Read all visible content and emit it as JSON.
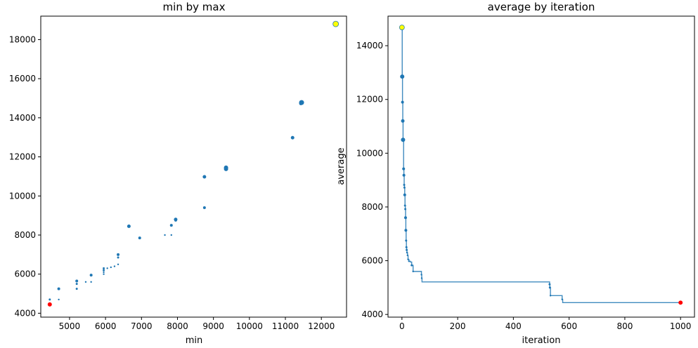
{
  "colors": {
    "series": "#1f77b4",
    "highlight_start": "#ffff00",
    "highlight_end": "#ff0000",
    "axis": "#000000",
    "background": "#ffffff"
  },
  "chart_data": [
    {
      "type": "scatter",
      "title": "min by max",
      "xlabel": "min",
      "ylabel": "",
      "xlim": [
        4200,
        12700
      ],
      "ylim": [
        3800,
        19200
      ],
      "xticks": [
        5000,
        6000,
        7000,
        8000,
        9000,
        10000,
        11000,
        12000
      ],
      "yticks": [
        4000,
        6000,
        8000,
        10000,
        12000,
        14000,
        16000,
        18000
      ],
      "grid": false,
      "points": [
        {
          "x": 12400,
          "y": 18800,
          "size": 4,
          "highlight": "start"
        },
        {
          "x": 11450,
          "y": 14780,
          "size": 3.5
        },
        {
          "x": 11430,
          "y": 14730,
          "size": 2.5
        },
        {
          "x": 11200,
          "y": 12980,
          "size": 2.5
        },
        {
          "x": 9350,
          "y": 11450,
          "size": 3
        },
        {
          "x": 9350,
          "y": 11380,
          "size": 3
        },
        {
          "x": 8750,
          "y": 10980,
          "size": 2.5
        },
        {
          "x": 8750,
          "y": 9400,
          "size": 2
        },
        {
          "x": 7950,
          "y": 8800,
          "size": 2.5
        },
        {
          "x": 7950,
          "y": 8760,
          "size": 2
        },
        {
          "x": 7830,
          "y": 8500,
          "size": 2
        },
        {
          "x": 7830,
          "y": 8000,
          "size": 1.2
        },
        {
          "x": 7650,
          "y": 8000,
          "size": 1.2
        },
        {
          "x": 6650,
          "y": 8450,
          "size": 2.5
        },
        {
          "x": 6950,
          "y": 7850,
          "size": 2
        },
        {
          "x": 6350,
          "y": 7000,
          "size": 2
        },
        {
          "x": 6350,
          "y": 6850,
          "size": 1.5
        },
        {
          "x": 6350,
          "y": 6500,
          "size": 1.2
        },
        {
          "x": 6250,
          "y": 6400,
          "size": 1.2
        },
        {
          "x": 6150,
          "y": 6350,
          "size": 1.2
        },
        {
          "x": 6050,
          "y": 6300,
          "size": 1.2
        },
        {
          "x": 5950,
          "y": 6300,
          "size": 1.5
        },
        {
          "x": 5950,
          "y": 6200,
          "size": 1.5
        },
        {
          "x": 5950,
          "y": 6100,
          "size": 1.2
        },
        {
          "x": 5950,
          "y": 6000,
          "size": 1.2
        },
        {
          "x": 5600,
          "y": 5950,
          "size": 2
        },
        {
          "x": 5600,
          "y": 5600,
          "size": 1.2
        },
        {
          "x": 5450,
          "y": 5600,
          "size": 1.2
        },
        {
          "x": 5200,
          "y": 5650,
          "size": 2
        },
        {
          "x": 5200,
          "y": 5500,
          "size": 1.5
        },
        {
          "x": 5200,
          "y": 5250,
          "size": 1.5
        },
        {
          "x": 4700,
          "y": 5250,
          "size": 2
        },
        {
          "x": 4700,
          "y": 4700,
          "size": 1.2
        },
        {
          "x": 4450,
          "y": 4700,
          "size": 1.5
        },
        {
          "x": 4450,
          "y": 4450,
          "size": 3,
          "highlight": "end"
        }
      ]
    },
    {
      "type": "line",
      "title": "average by iteration",
      "xlabel": "iteration",
      "ylabel": "average",
      "xlim": [
        -50,
        1050
      ],
      "ylim": [
        3900,
        15100
      ],
      "xticks": [
        0,
        200,
        400,
        600,
        800,
        1000
      ],
      "yticks": [
        4000,
        6000,
        8000,
        10000,
        12000,
        14000
      ],
      "grid": false,
      "steps": [
        {
          "x": 0,
          "y": 14680
        },
        {
          "x": 1,
          "y": 12850
        },
        {
          "x": 2,
          "y": 11900
        },
        {
          "x": 3,
          "y": 11200
        },
        {
          "x": 4,
          "y": 10500
        },
        {
          "x": 5,
          "y": 10480
        },
        {
          "x": 6,
          "y": 9420
        },
        {
          "x": 7,
          "y": 9180
        },
        {
          "x": 8,
          "y": 8820
        },
        {
          "x": 9,
          "y": 8720
        },
        {
          "x": 10,
          "y": 8450
        },
        {
          "x": 11,
          "y": 8050
        },
        {
          "x": 12,
          "y": 7920
        },
        {
          "x": 13,
          "y": 7600
        },
        {
          "x": 14,
          "y": 7130
        },
        {
          "x": 15,
          "y": 6750
        },
        {
          "x": 16,
          "y": 6500
        },
        {
          "x": 17,
          "y": 6400
        },
        {
          "x": 18,
          "y": 6300
        },
        {
          "x": 20,
          "y": 6200
        },
        {
          "x": 22,
          "y": 6050
        },
        {
          "x": 25,
          "y": 5980
        },
        {
          "x": 30,
          "y": 5950
        },
        {
          "x": 35,
          "y": 5830
        },
        {
          "x": 40,
          "y": 5600
        },
        {
          "x": 70,
          "y": 5480
        },
        {
          "x": 71,
          "y": 5350
        },
        {
          "x": 72,
          "y": 5210
        },
        {
          "x": 530,
          "y": 5120
        },
        {
          "x": 531,
          "y": 5000
        },
        {
          "x": 533,
          "y": 4700
        },
        {
          "x": 575,
          "y": 4560
        },
        {
          "x": 577,
          "y": 4440
        },
        {
          "x": 1000,
          "y": 4440
        }
      ],
      "marked_points": [
        {
          "x": 0,
          "y": 14680,
          "size": 3.5,
          "highlight": "start"
        },
        {
          "x": 1,
          "y": 12850,
          "size": 3
        },
        {
          "x": 2,
          "y": 11900,
          "size": 2
        },
        {
          "x": 3,
          "y": 11200,
          "size": 2.5
        },
        {
          "x": 4,
          "y": 10500,
          "size": 3
        },
        {
          "x": 6,
          "y": 9420,
          "size": 2
        },
        {
          "x": 7,
          "y": 9180,
          "size": 2
        },
        {
          "x": 8,
          "y": 8820,
          "size": 1.5
        },
        {
          "x": 9,
          "y": 8720,
          "size": 1.5
        },
        {
          "x": 10,
          "y": 8450,
          "size": 2
        },
        {
          "x": 11,
          "y": 8050,
          "size": 1.5
        },
        {
          "x": 12,
          "y": 7920,
          "size": 1.5
        },
        {
          "x": 13,
          "y": 7600,
          "size": 2
        },
        {
          "x": 14,
          "y": 7130,
          "size": 2
        },
        {
          "x": 15,
          "y": 6750,
          "size": 1.5
        },
        {
          "x": 16,
          "y": 6500,
          "size": 1.5
        },
        {
          "x": 17,
          "y": 6400,
          "size": 1.5
        },
        {
          "x": 18,
          "y": 6300,
          "size": 1.2
        },
        {
          "x": 20,
          "y": 6200,
          "size": 1.2
        },
        {
          "x": 22,
          "y": 6050,
          "size": 1.2
        },
        {
          "x": 25,
          "y": 5980,
          "size": 1.2
        },
        {
          "x": 35,
          "y": 5830,
          "size": 1.5
        },
        {
          "x": 40,
          "y": 5600,
          "size": 1.2
        },
        {
          "x": 70,
          "y": 5480,
          "size": 1.2
        },
        {
          "x": 71,
          "y": 5350,
          "size": 1.2
        },
        {
          "x": 530,
          "y": 5120,
          "size": 1.5
        },
        {
          "x": 531,
          "y": 5000,
          "size": 1.5
        },
        {
          "x": 533,
          "y": 4700,
          "size": 1.2
        },
        {
          "x": 575,
          "y": 4560,
          "size": 1.2
        },
        {
          "x": 1000,
          "y": 4440,
          "size": 3,
          "highlight": "end"
        }
      ]
    }
  ]
}
